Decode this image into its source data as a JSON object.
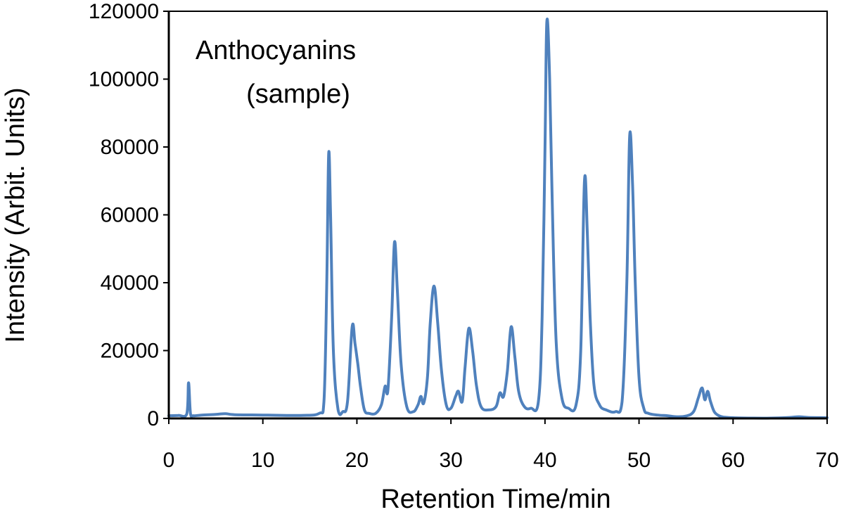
{
  "chart_data": {
    "type": "line",
    "title": "",
    "xlabel": "Retention Time/min",
    "ylabel": "Intensity (Arbit. Units)",
    "xlim": [
      0,
      70
    ],
    "ylim": [
      0,
      120000
    ],
    "x_ticks": [
      0,
      10,
      20,
      30,
      40,
      50,
      60,
      70
    ],
    "y_ticks": [
      0,
      20000,
      40000,
      60000,
      80000,
      100000,
      120000
    ],
    "x_tick_labels": [
      "0",
      "10",
      "20",
      "30",
      "40",
      "50",
      "60",
      "70"
    ],
    "y_tick_labels": [
      "0",
      "20000",
      "40000",
      "60000",
      "80000",
      "100000",
      "120000"
    ],
    "grid": false,
    "annotation_lines": [
      "Anthocyanins",
      "(sample)"
    ],
    "line_color": "#4f81bd",
    "series": [
      {
        "x": [
          0,
          1.0,
          1.9,
          2.1,
          2.3,
          2.6,
          3.5,
          5,
          6,
          7,
          10,
          14,
          16.0,
          16.5,
          16.8,
          17.0,
          17.2,
          17.5,
          18.0,
          18.5,
          19.0,
          19.5,
          19.8,
          20.1,
          20.4,
          20.8,
          21.3,
          22.0,
          22.6,
          23.0,
          23.3,
          23.7,
          24.0,
          24.3,
          24.7,
          25.3,
          26.0,
          26.5,
          26.8,
          27.1,
          27.5,
          27.8,
          28.2,
          28.6,
          29.0,
          29.5,
          30.0,
          30.5,
          30.8,
          31.2,
          31.5,
          31.9,
          32.3,
          32.7,
          33.2,
          34.0,
          34.8,
          35.2,
          35.6,
          36.0,
          36.4,
          36.8,
          37.2,
          37.8,
          38.5,
          39.3,
          39.7,
          40.0,
          40.2,
          40.5,
          40.8,
          41.2,
          41.8,
          42.5,
          43.3,
          43.8,
          44.2,
          44.5,
          44.8,
          45.2,
          45.8,
          46.5,
          47.5,
          48.2,
          48.7,
          49.0,
          49.3,
          49.6,
          50.0,
          50.5,
          51.0,
          52.0,
          53.0,
          54.0,
          55.0,
          55.8,
          56.3,
          56.7,
          57.0,
          57.3,
          57.6,
          58.0,
          58.5,
          59.0,
          60.0,
          62.0,
          64.0,
          66.0,
          67.0,
          68.0,
          70.0
        ],
        "y": [
          800,
          900,
          1200,
          10500,
          1500,
          800,
          1000,
          1200,
          1400,
          1100,
          1000,
          900,
          1500,
          5000,
          40000,
          78000,
          60000,
          20000,
          2500,
          2000,
          5000,
          27000,
          22000,
          16000,
          9000,
          2500,
          1500,
          1500,
          4000,
          9500,
          8500,
          30000,
          52000,
          38000,
          16000,
          3500,
          2000,
          4000,
          6500,
          4500,
          12000,
          28000,
          39000,
          28000,
          14000,
          4000,
          3000,
          6500,
          8000,
          5000,
          15000,
          26500,
          20000,
          10000,
          3500,
          2500,
          3500,
          7500,
          6500,
          14000,
          27000,
          18000,
          8000,
          3500,
          3000,
          5000,
          30000,
          80000,
          117000,
          100000,
          60000,
          22000,
          6000,
          3000,
          4000,
          20000,
          70000,
          55000,
          30000,
          10000,
          4000,
          2500,
          2000,
          5000,
          40000,
          83000,
          70000,
          40000,
          12000,
          3000,
          1500,
          1000,
          800,
          500,
          700,
          2000,
          6000,
          9000,
          5500,
          8000,
          5000,
          2000,
          800,
          400,
          200,
          100,
          100,
          300,
          500,
          300,
          200
        ]
      }
    ]
  }
}
